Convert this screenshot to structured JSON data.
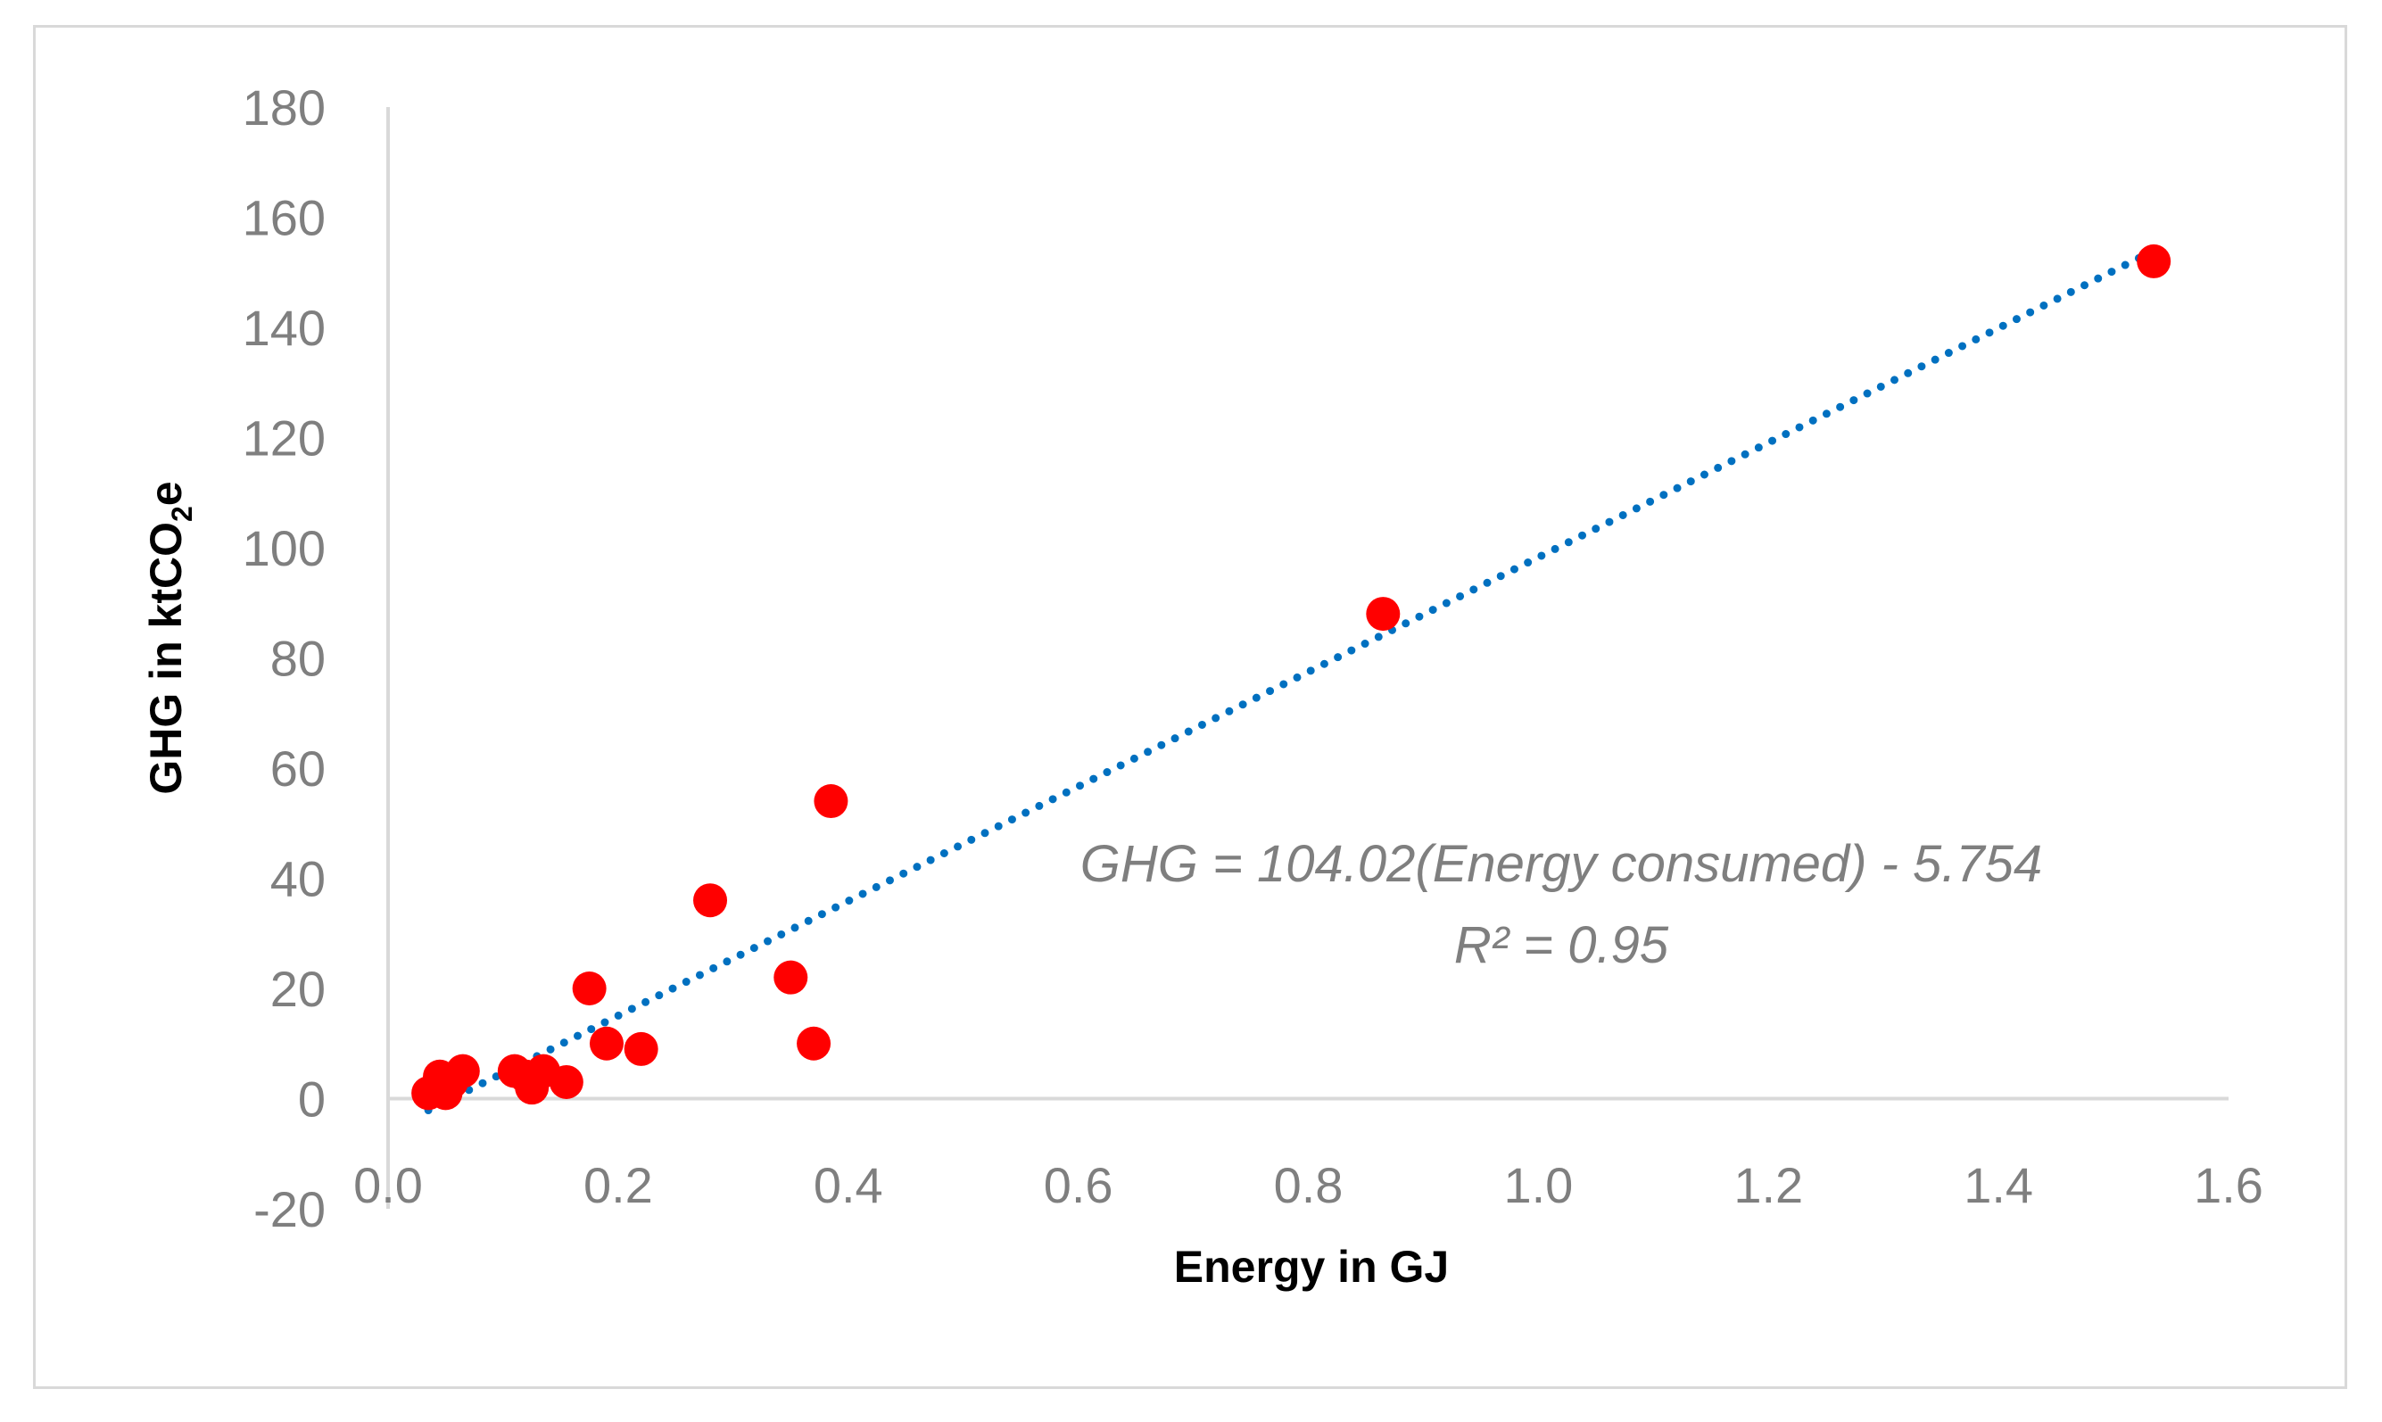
{
  "chart_data": {
    "type": "scatter",
    "title": "",
    "xlabel": "Energy in GJ",
    "ylabel": {
      "main": "GHG in ktCO",
      "subscript": "2",
      "suffix": "e"
    },
    "xlim": [
      0,
      1.6
    ],
    "ylim": [
      -20,
      180
    ],
    "x_ticks": [
      0.0,
      0.2,
      0.4,
      0.6,
      0.8,
      1.0,
      1.2,
      1.4,
      1.6
    ],
    "x_tick_labels": [
      "0.0",
      "0.2",
      "0.4",
      "0.6",
      "0.8",
      "1.0",
      "1.2",
      "1.4",
      "1.6"
    ],
    "y_ticks": [
      -20,
      0,
      20,
      40,
      60,
      80,
      100,
      120,
      140,
      160,
      180
    ],
    "y_tick_labels": [
      "-20",
      "0",
      "20",
      "40",
      "60",
      "80",
      "100",
      "120",
      "140",
      "160",
      "180"
    ],
    "series": [
      {
        "name": "GHG",
        "color": "#ff0000",
        "points": [
          {
            "x": 0.035,
            "y": 1
          },
          {
            "x": 0.045,
            "y": 4
          },
          {
            "x": 0.05,
            "y": 1
          },
          {
            "x": 0.055,
            "y": 3
          },
          {
            "x": 0.065,
            "y": 5
          },
          {
            "x": 0.11,
            "y": 5
          },
          {
            "x": 0.12,
            "y": 4
          },
          {
            "x": 0.125,
            "y": 2
          },
          {
            "x": 0.135,
            "y": 5
          },
          {
            "x": 0.155,
            "y": 3
          },
          {
            "x": 0.175,
            "y": 20
          },
          {
            "x": 0.19,
            "y": 10
          },
          {
            "x": 0.22,
            "y": 9
          },
          {
            "x": 0.28,
            "y": 36
          },
          {
            "x": 0.35,
            "y": 22
          },
          {
            "x": 0.37,
            "y": 10
          },
          {
            "x": 0.385,
            "y": 54
          },
          {
            "x": 0.865,
            "y": 88
          },
          {
            "x": 1.535,
            "y": 152
          }
        ]
      }
    ],
    "trendline": {
      "type": "linear",
      "slope": 104.02,
      "intercept": -5.754,
      "x_range": [
        0.035,
        1.535
      ],
      "color": "#0070c0",
      "style": "dotted"
    },
    "annotation": {
      "equation": "GHG = 104.02(Energy consumed) - 5.754",
      "r_squared": "R² = 0.95"
    },
    "grid": false,
    "legend": "none"
  }
}
